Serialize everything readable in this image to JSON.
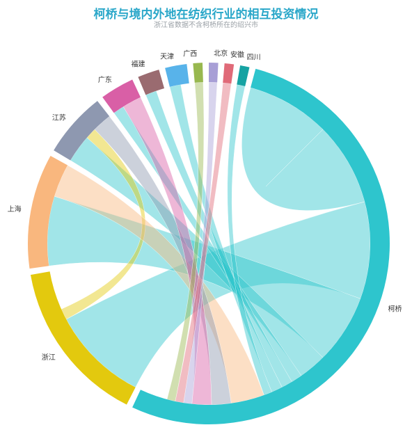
{
  "chart_data": {
    "type": "chord",
    "title": "柯桥与境内外地在纺织行业的相互投资情况",
    "subtitle": "浙江省数据不含柯桥所在的绍兴市",
    "groups": [
      {
        "name": "柯桥",
        "value": 190,
        "color": "#2ec5cd"
      },
      {
        "name": "浙江",
        "value": 53,
        "color": "#e3c90e"
      },
      {
        "name": "上海",
        "value": 37,
        "color": "#f9b77e"
      },
      {
        "name": "江苏",
        "value": 21,
        "color": "#8e98b0"
      },
      {
        "name": "广东",
        "value": 11,
        "color": "#d95fa6"
      },
      {
        "name": "福建",
        "value": 7,
        "color": "#9a6b70"
      },
      {
        "name": "天津",
        "value": 7,
        "color": "#58b3ea"
      },
      {
        "name": "广西",
        "value": 3,
        "color": "#98b84f"
      },
      {
        "name": "北京",
        "value": 3,
        "color": "#a89fd6"
      },
      {
        "name": "安徽",
        "value": 3,
        "color": "#e06a78"
      },
      {
        "name": "四川",
        "value": 3,
        "color": "#16a3a3"
      }
    ],
    "links": [
      {
        "source": "柯桥",
        "target": "柯桥",
        "value": 30,
        "color": "#2ec5cd"
      },
      {
        "source": "柯桥",
        "target": "浙江",
        "value": 35,
        "color": "#2ec5cd"
      },
      {
        "source": "柯桥",
        "target": "上海",
        "value": 25,
        "color": "#2ec5cd"
      },
      {
        "source": "柯桥",
        "target": "江苏",
        "value": 10,
        "color": "#2ec5cd"
      },
      {
        "source": "柯桥",
        "target": "广东",
        "value": 4,
        "color": "#2ec5cd"
      },
      {
        "source": "柯桥",
        "target": "福建",
        "value": 4,
        "color": "#2ec5cd"
      },
      {
        "source": "柯桥",
        "target": "天津",
        "value": 4,
        "color": "#2ec5cd"
      },
      {
        "source": "柯桥",
        "target": "四川",
        "value": 3,
        "color": "#2ec5cd"
      },
      {
        "source": "浙江",
        "target": "江苏",
        "value": 4,
        "color": "#e3c90e"
      },
      {
        "source": "上海",
        "target": "柯桥",
        "value": 12,
        "color": "#f9b77e"
      },
      {
        "source": "江苏",
        "target": "柯桥",
        "value": 7,
        "color": "#8e98b0"
      },
      {
        "source": "广东",
        "target": "柯桥",
        "value": 7,
        "color": "#d95fa6"
      },
      {
        "source": "北京",
        "target": "柯桥",
        "value": 3,
        "color": "#a89fd6"
      },
      {
        "source": "安徽",
        "target": "柯桥",
        "value": 3,
        "color": "#e06a78"
      },
      {
        "source": "广西",
        "target": "柯桥",
        "value": 3,
        "color": "#98b84f"
      }
    ]
  }
}
